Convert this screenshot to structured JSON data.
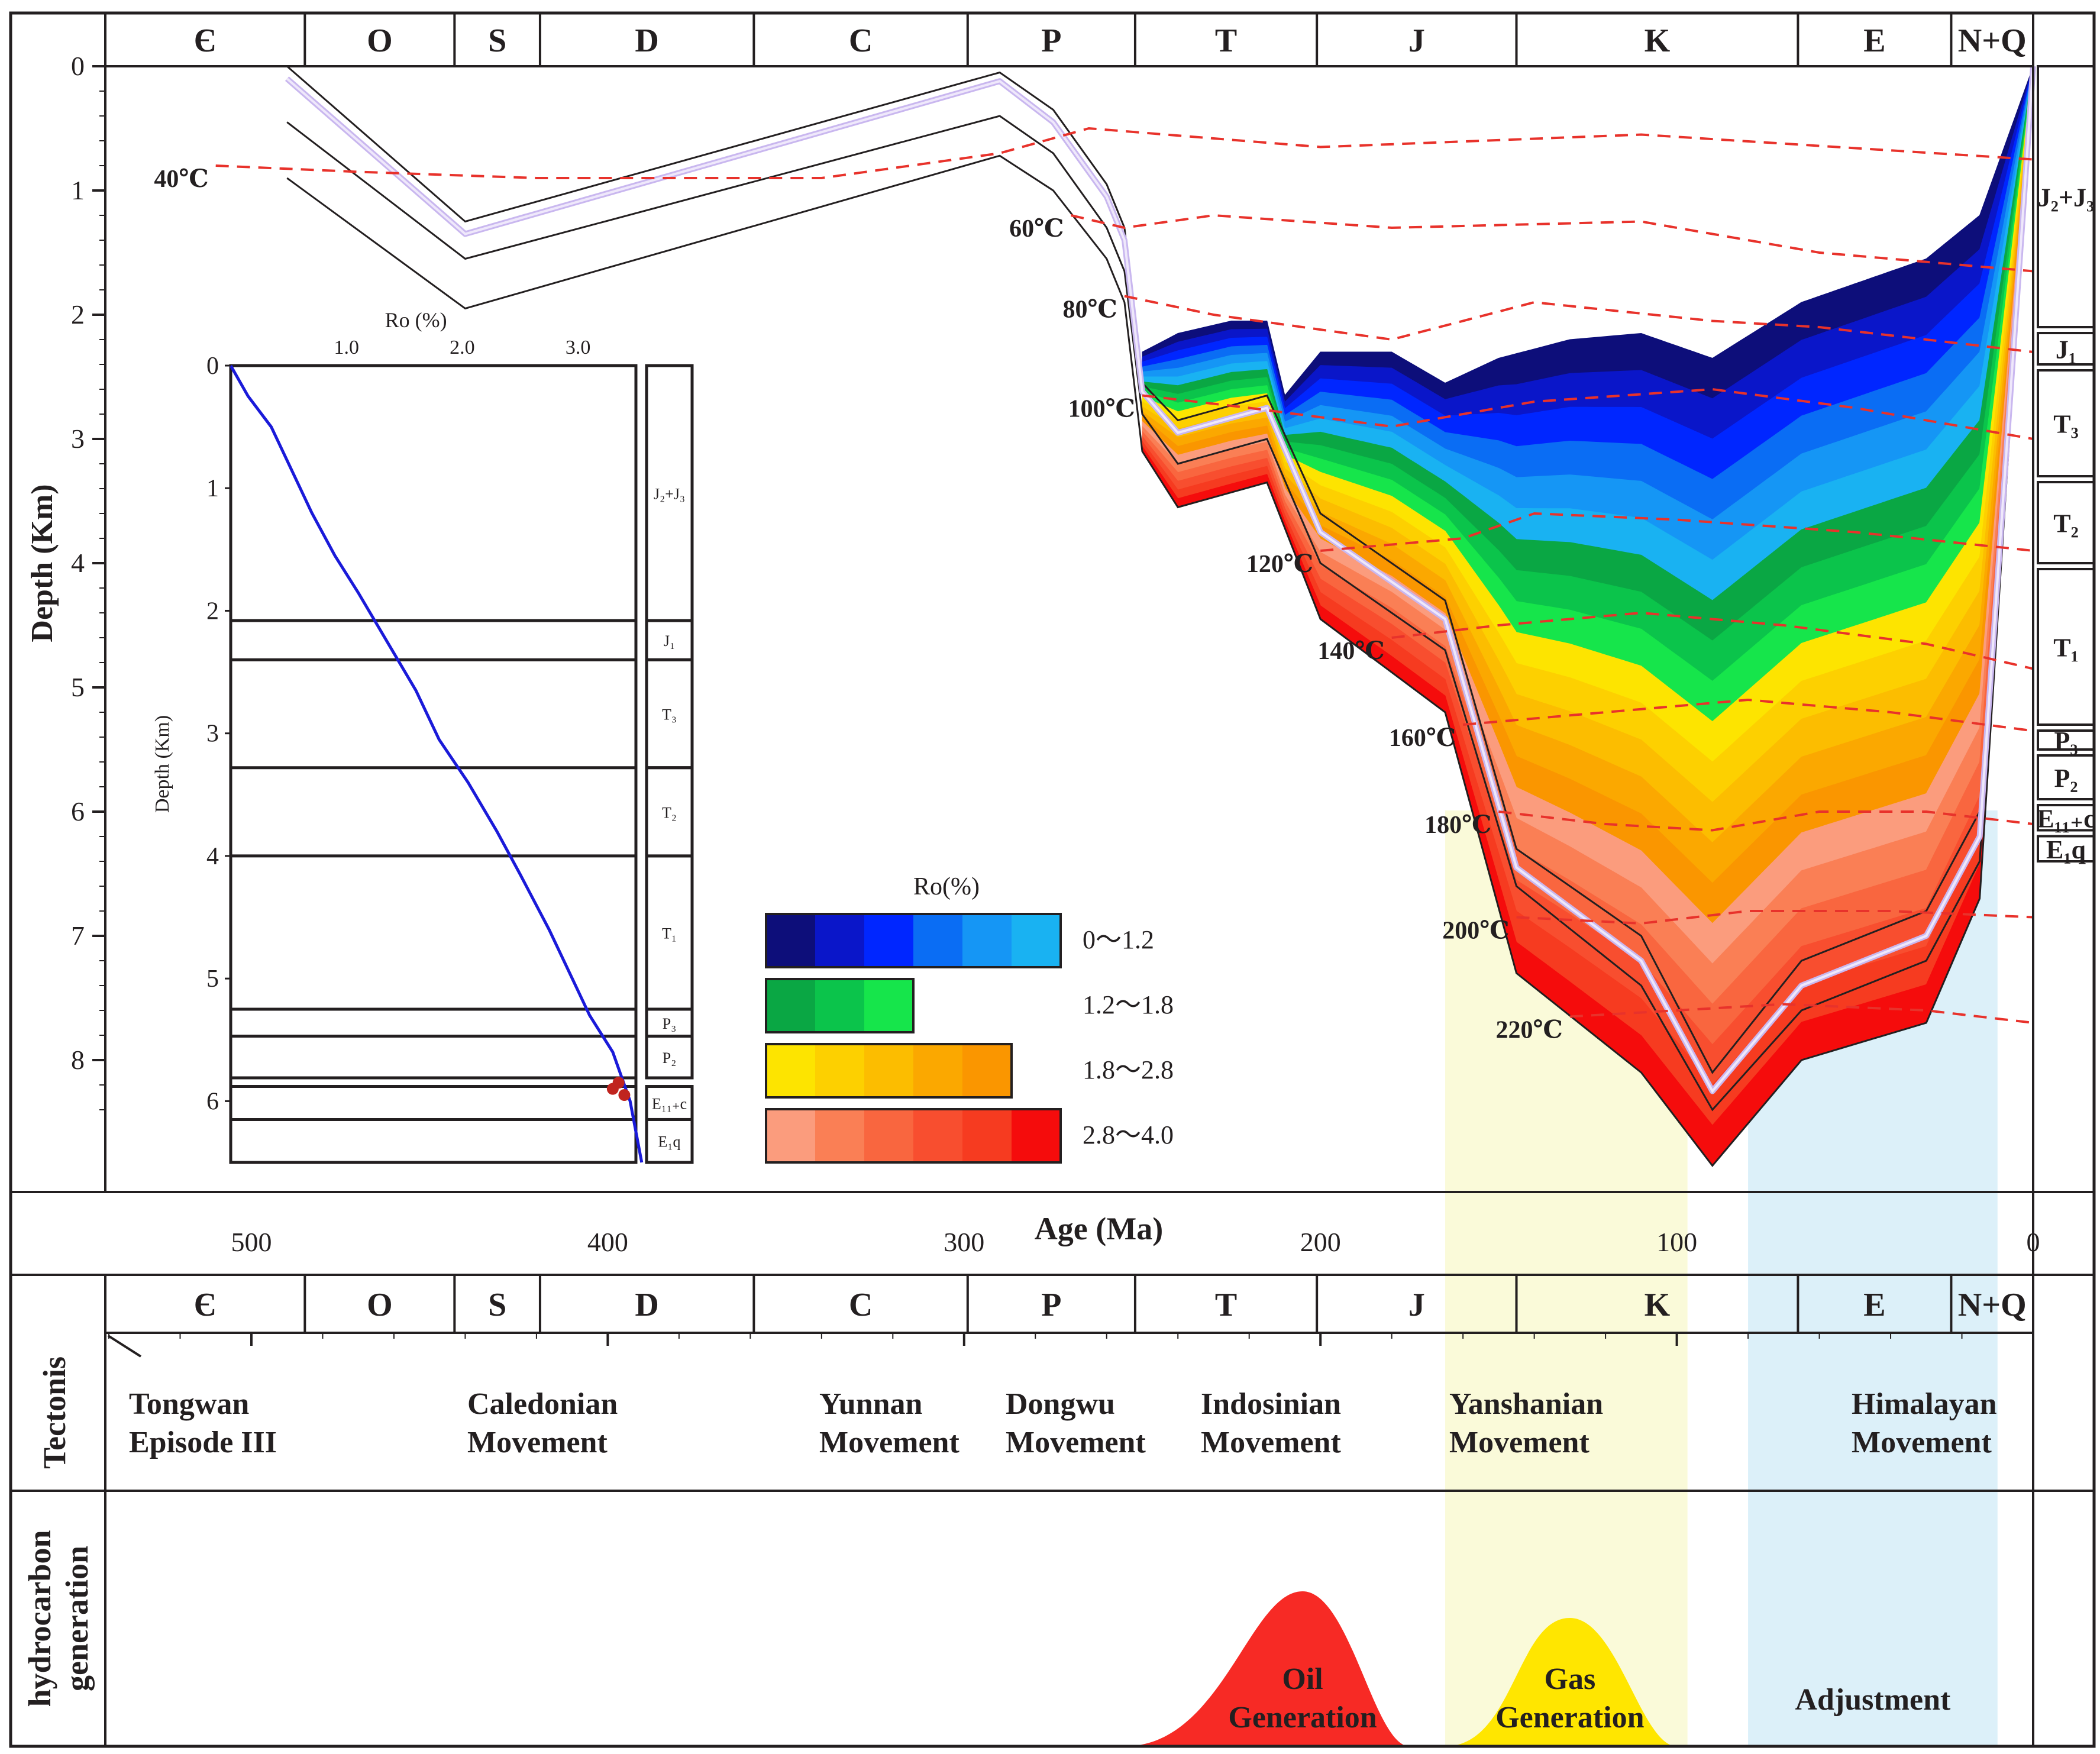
{
  "chart_data": [
    {
      "type": "area",
      "title": "",
      "xlabel": "Age (Ma)",
      "ylabel": "Depth (Km)",
      "xlim": [
        541,
        0
      ],
      "ylim": [
        9,
        0
      ],
      "x_ticks": [
        "500",
        "400",
        "300",
        "200",
        "100",
        "0"
      ],
      "y_ticks": [
        "0",
        "1",
        "2",
        "3",
        "4",
        "5",
        "6",
        "7",
        "8"
      ],
      "periods": [
        {
          "label": "Є",
          "start": 541,
          "end": 485
        },
        {
          "label": "O",
          "start": 485,
          "end": 443
        },
        {
          "label": "S",
          "start": 443,
          "end": 419
        },
        {
          "label": "D",
          "start": 419,
          "end": 359
        },
        {
          "label": "C",
          "start": 359,
          "end": 299
        },
        {
          "label": "P",
          "start": 299,
          "end": 252
        },
        {
          "label": "T",
          "start": 252,
          "end": 201
        },
        {
          "label": "J",
          "start": 201,
          "end": 145
        },
        {
          "label": "K",
          "start": 145,
          "end": 66
        },
        {
          "label": "E",
          "start": 66,
          "end": 23
        },
        {
          "label": "N+Q",
          "start": 23,
          "end": 0
        }
      ],
      "strata": [
        {
          "label": "J₂+J₃",
          "top": 0.0,
          "bottom": 2.1
        },
        {
          "label": "J₁",
          "top": 2.1,
          "bottom": 2.4
        },
        {
          "label": "T₃",
          "top": 2.4,
          "bottom": 3.3
        },
        {
          "label": "T₂",
          "top": 3.3,
          "bottom": 4.0
        },
        {
          "label": "T₁",
          "top": 4.0,
          "bottom": 5.3
        },
        {
          "label": "P₃",
          "top": 5.3,
          "bottom": 5.5
        },
        {
          "label": "P₂",
          "top": 5.5,
          "bottom": 5.9
        },
        {
          "label": "E₁₁₊c",
          "top": 5.9,
          "bottom": 6.15
        },
        {
          "label": "E₁q",
          "top": 6.15,
          "bottom": 6.4
        }
      ],
      "burial_curves": [
        {
          "x": [
            490,
            440,
            290,
            275,
            260,
            255,
            250,
            240,
            215,
            200,
            165,
            145,
            110,
            90,
            65,
            30,
            15,
            0
          ],
          "y": [
            0.0,
            1.25,
            0.05,
            0.35,
            0.95,
            1.3,
            2.55,
            2.85,
            2.65,
            3.6,
            4.3,
            6.3,
            7.0,
            8.1,
            7.2,
            6.8,
            6.0,
            0.0
          ]
        },
        {
          "x": [
            490,
            440,
            290,
            275,
            260,
            255,
            250,
            240,
            215,
            200,
            165,
            145,
            110,
            90,
            65,
            30,
            15,
            0
          ],
          "y": [
            0.1,
            1.35,
            0.12,
            0.45,
            1.05,
            1.4,
            2.62,
            2.95,
            2.75,
            3.75,
            4.45,
            6.45,
            7.2,
            8.25,
            7.4,
            7.0,
            6.2,
            0.0
          ]
        },
        {
          "x": [
            490,
            440,
            290,
            275,
            260,
            255,
            250,
            240,
            215,
            200,
            165,
            145,
            110,
            90,
            65,
            30,
            15,
            0
          ],
          "y": [
            0.45,
            1.55,
            0.4,
            0.7,
            1.3,
            1.65,
            2.8,
            3.2,
            3.0,
            4.0,
            4.7,
            6.6,
            7.4,
            8.4,
            7.6,
            7.2,
            6.4,
            0.0
          ]
        },
        {
          "x": [
            490,
            440,
            290,
            275,
            260,
            255,
            250,
            240,
            215,
            200,
            165,
            145,
            110,
            90,
            65,
            30,
            15,
            0
          ],
          "y": [
            0.9,
            1.95,
            0.72,
            1.0,
            1.55,
            1.9,
            3.1,
            3.55,
            3.35,
            4.45,
            5.2,
            7.3,
            8.1,
            8.85,
            8.0,
            7.7,
            6.7,
            0.0
          ]
        }
      ],
      "isotherms": [
        {
          "label": "40℃",
          "x": [
            510,
            470,
            420,
            340,
            290,
            265,
            200,
            110,
            0
          ],
          "y": [
            0.8,
            0.85,
            0.9,
            0.9,
            0.7,
            0.5,
            0.65,
            0.55,
            0.75
          ]
        },
        {
          "label": "60℃",
          "x": [
            270,
            255,
            230,
            180,
            110,
            60,
            0
          ],
          "y": [
            1.2,
            1.3,
            1.2,
            1.3,
            1.25,
            1.5,
            1.65
          ]
        },
        {
          "label": "80℃",
          "x": [
            255,
            230,
            180,
            140,
            90,
            60,
            0
          ],
          "y": [
            1.85,
            2.0,
            2.2,
            1.9,
            2.05,
            2.1,
            2.3
          ]
        },
        {
          "label": "100℃",
          "x": [
            250,
            220,
            180,
            140,
            90,
            50,
            0
          ],
          "y": [
            2.65,
            2.75,
            2.9,
            2.7,
            2.6,
            2.75,
            3.0
          ]
        },
        {
          "label": "120℃",
          "x": [
            200,
            160,
            140,
            100,
            50,
            0
          ],
          "y": [
            3.9,
            3.8,
            3.6,
            3.65,
            3.75,
            3.9
          ]
        },
        {
          "label": "140℃",
          "x": [
            180,
            150,
            110,
            70,
            30,
            0
          ],
          "y": [
            4.6,
            4.5,
            4.4,
            4.5,
            4.65,
            4.85
          ]
        },
        {
          "label": "160℃",
          "x": [
            160,
            120,
            80,
            40,
            0
          ],
          "y": [
            5.3,
            5.2,
            5.1,
            5.2,
            5.35
          ]
        },
        {
          "label": "180℃",
          "x": [
            150,
            120,
            90,
            60,
            30,
            0
          ],
          "y": [
            6.0,
            6.1,
            6.15,
            6.0,
            6.0,
            6.1
          ]
        },
        {
          "label": "200℃",
          "x": [
            145,
            110,
            80,
            40,
            0
          ],
          "y": [
            6.85,
            6.9,
            6.8,
            6.8,
            6.85
          ]
        },
        {
          "label": "220℃",
          "x": [
            130,
            100,
            70,
            30,
            0
          ],
          "y": [
            7.65,
            7.6,
            7.55,
            7.6,
            7.7
          ]
        }
      ],
      "ro_legend": {
        "title": "Ro(%)",
        "ranges": [
          {
            "label": "0～1.2",
            "colors": [
              "#0d0e7a",
              "#0a16c9",
              "#0026ff",
              "#0a6df4",
              "#1596f5",
              "#19b2f2"
            ]
          },
          {
            "label": "1.2～1.8",
            "colors": [
              "#0aa744",
              "#0bc44b",
              "#16e54b"
            ]
          },
          {
            "label": "1.8～2.8",
            "colors": [
              "#fde400",
              "#fdd000",
              "#fcbd00",
              "#fba800",
              "#fa9600"
            ]
          },
          {
            "label": "2.8～4.0",
            "colors": [
              "#fb9c7d",
              "#fa7f55",
              "#f9663f",
              "#f84e2f",
              "#f63b20",
              "#f50c0c"
            ]
          }
        ]
      },
      "tectonics": [
        {
          "name": "Tongwan Episode III",
          "line1": "Tongwan",
          "line2": "Episode III"
        },
        {
          "name": "Caledonian Movement",
          "line1": "Caledonian",
          "line2": "Movement"
        },
        {
          "name": "Yunnan Movement",
          "line1": "Yunnan",
          "line2": "Movement"
        },
        {
          "name": "Dongwu Movement",
          "line1": "Dongwu",
          "line2": "Movement"
        },
        {
          "name": "Indosinian Movement",
          "line1": "Indosinian",
          "line2": "Movement"
        },
        {
          "name": "Yanshanian Movement",
          "line1": "Yanshanian",
          "line2": "Movement"
        },
        {
          "name": "Himalayan Movement",
          "line1": "Himalayan",
          "line2": "Movement"
        }
      ],
      "hydrocarbon": [
        {
          "name": "Oil Generation",
          "line1": "Oil",
          "line2": "Generation",
          "color": "#f72a25",
          "start": 255,
          "peak": 205,
          "end": 175
        },
        {
          "name": "Gas Generation",
          "line1": "Gas",
          "line2": "Generation",
          "color": "#ffe600",
          "start": 165,
          "peak": 130,
          "end": 100
        },
        {
          "name": "Adjustment",
          "line1": "Adjustment",
          "line2": "",
          "color": "#dceff9",
          "start": 80,
          "end": 10
        }
      ],
      "highlight_bands": [
        {
          "start": 165,
          "end": 97,
          "color": "#fafad9"
        },
        {
          "start": 80,
          "end": 10,
          "color": "#dcf0f9"
        }
      ],
      "row_labels": {
        "tectonics": "Tectonis",
        "hydrocarbon_line1": "hydrocarbon",
        "hydrocarbon_line2": "generation"
      }
    },
    {
      "type": "line",
      "title": "",
      "xlabel": "Ro (%)",
      "ylabel": "Depth (Km)",
      "xlim": [
        0,
        3.5
      ],
      "ylim": [
        6.5,
        0
      ],
      "x_ticks": [
        "1.0",
        "2.0",
        "3.0"
      ],
      "y_ticks": [
        "0",
        "1",
        "2",
        "3",
        "4",
        "5",
        "6"
      ],
      "series": [
        {
          "x": [
            0.0,
            0.15,
            0.35,
            0.5,
            0.7,
            0.9,
            1.1,
            1.35,
            1.6,
            1.8,
            2.05,
            2.3,
            2.5,
            2.75,
            2.95,
            3.1,
            3.3,
            3.45,
            3.55
          ],
          "y": [
            0.0,
            0.25,
            0.5,
            0.8,
            1.2,
            1.55,
            1.85,
            2.25,
            2.65,
            3.05,
            3.4,
            3.8,
            4.15,
            4.6,
            5.0,
            5.3,
            5.6,
            6.0,
            6.5
          ]
        }
      ],
      "samples": {
        "x": [
          3.3,
          3.4,
          3.35
        ],
        "y": [
          5.9,
          5.95,
          5.85
        ]
      },
      "strata_lines": [
        2.08,
        2.4,
        3.28,
        4.0,
        5.25,
        5.47,
        5.81,
        5.88,
        6.15
      ],
      "strata": [
        {
          "label": "J₂+J₃",
          "top": 0.0,
          "bottom": 2.08
        },
        {
          "label": "J₁",
          "top": 2.08,
          "bottom": 2.4
        },
        {
          "label": "T₃",
          "top": 2.4,
          "bottom": 3.28
        },
        {
          "label": "T₂",
          "top": 3.28,
          "bottom": 4.0
        },
        {
          "label": "T₁",
          "top": 4.0,
          "bottom": 5.25
        },
        {
          "label": "P₃",
          "top": 5.25,
          "bottom": 5.47
        },
        {
          "label": "P₂",
          "top": 5.47,
          "bottom": 5.81
        },
        {
          "label": "E₁₁₊c",
          "top": 5.88,
          "bottom": 6.15
        },
        {
          "label": "E₁q",
          "top": 6.15,
          "bottom": 6.5
        }
      ]
    }
  ]
}
